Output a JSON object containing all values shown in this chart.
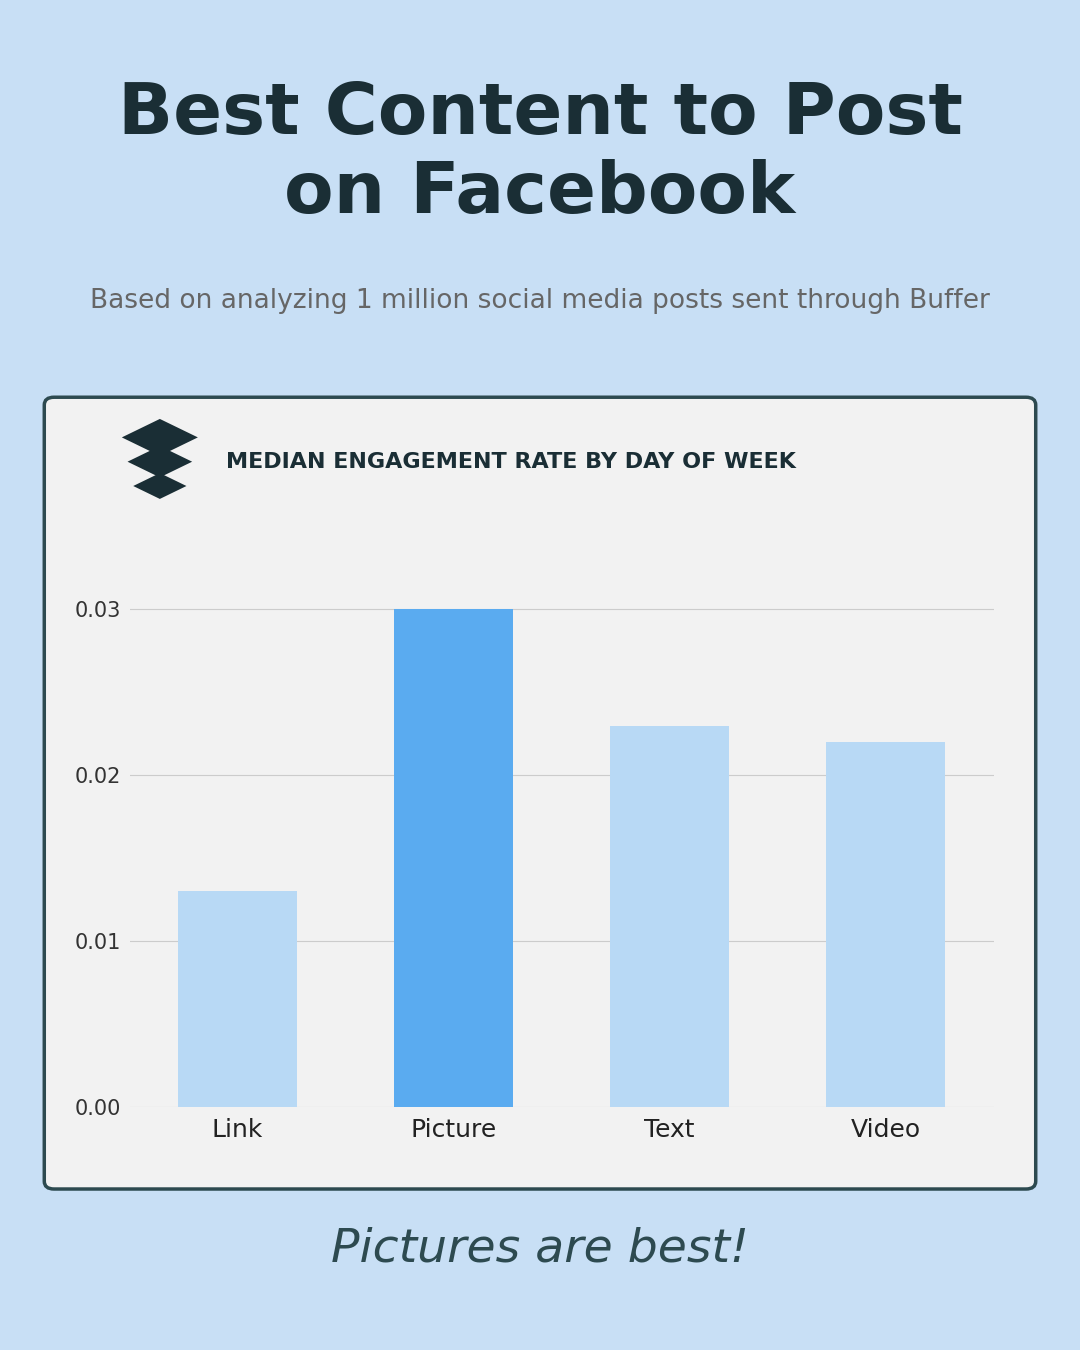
{
  "title_line1": "Best Content to Post",
  "title_line2": "on Facebook",
  "subtitle": "Based on analyzing 1 million social media posts sent through Buffer",
  "chart_title": "MEDIAN ENGAGEMENT RATE BY DAY OF WEEK",
  "categories": [
    "Link",
    "Picture",
    "Text",
    "Video"
  ],
  "values": [
    0.013,
    0.03,
    0.023,
    0.022
  ],
  "bar_colors": [
    "#b8d9f5",
    "#5aabf0",
    "#b8d9f5",
    "#b8d9f5"
  ],
  "background_color": "#c8dff5",
  "chart_bg_color": "#f2f2f2",
  "header_bg_color": "#ffffff",
  "title_color": "#1a2e35",
  "subtitle_color": "#666666",
  "axis_color": "#333333",
  "footer_text": "Pictures are best!",
  "ylim": [
    0,
    0.035
  ],
  "yticks": [
    0.0,
    0.01,
    0.02,
    0.03
  ]
}
